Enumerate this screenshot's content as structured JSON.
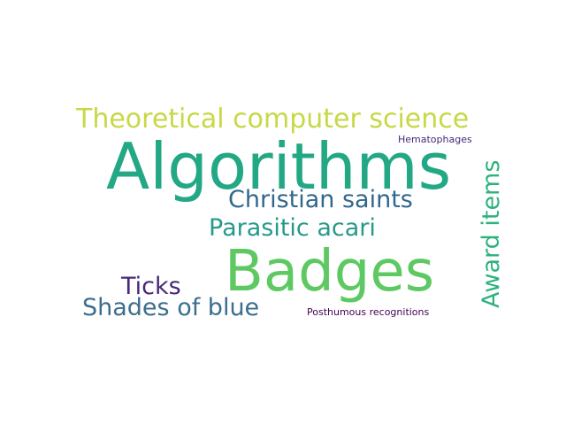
{
  "cloud": {
    "words": [
      {
        "id": "w-theoretical",
        "text": "Theoretical computer science",
        "color": "#c8d846"
      },
      {
        "id": "w-algorithms",
        "text": "Algorithms",
        "color": "#22a884"
      },
      {
        "id": "w-hemato",
        "text": "Hematophages",
        "color": "#482878"
      },
      {
        "id": "w-christian",
        "text": "Christian saints",
        "color": "#31688e"
      },
      {
        "id": "w-parasitic",
        "text": "Parasitic acari",
        "color": "#26998a"
      },
      {
        "id": "w-badges",
        "text": "Badges",
        "color": "#5ec962"
      },
      {
        "id": "w-ticks",
        "text": "Ticks",
        "color": "#482878"
      },
      {
        "id": "w-shades",
        "text": "Shades of blue",
        "color": "#3b6f8e"
      },
      {
        "id": "w-posthumous",
        "text": "Posthumous recognitions",
        "color": "#440154"
      },
      {
        "id": "w-award",
        "text": "Award items",
        "color": "#2db27d"
      }
    ]
  }
}
